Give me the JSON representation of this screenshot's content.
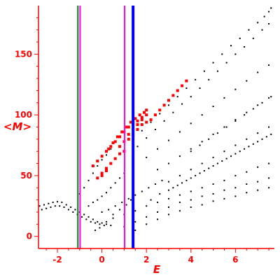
{
  "chart_data": {
    "type": "scatter",
    "title": "",
    "xlabel": "E",
    "ylabel": "<M>",
    "xlim": [
      -2.85,
      7.75
    ],
    "ylim": [
      -10,
      190
    ],
    "x_ticks": [
      -2,
      0,
      2,
      4,
      6
    ],
    "y_ticks": [
      0,
      50,
      100,
      150
    ],
    "axis_color": "#ff0000",
    "vertical_lines": [
      {
        "x": -1.08,
        "color": "#008000"
      },
      {
        "x": -0.98,
        "color": "#ff00ff"
      },
      {
        "x": 1.02,
        "color": "#ff00ff"
      },
      {
        "x": 1.4,
        "color": "#0000ff"
      }
    ],
    "series": [
      {
        "color": "#000000",
        "style": "small-dots",
        "points": [
          [
            -2.8,
            25
          ],
          [
            -2.6,
            26
          ],
          [
            -2.4,
            27
          ],
          [
            -2.2,
            28
          ],
          [
            -2.0,
            28.5
          ],
          [
            -1.8,
            28
          ],
          [
            -1.6,
            26
          ],
          [
            -1.4,
            24
          ],
          [
            -1.2,
            22
          ],
          [
            -1.0,
            20
          ],
          [
            -0.8,
            18
          ],
          [
            -0.6,
            16
          ],
          [
            -0.4,
            14
          ],
          [
            -0.2,
            12
          ],
          [
            0.0,
            11
          ],
          [
            0.2,
            10
          ],
          [
            0.4,
            9
          ],
          [
            -2.7,
            22
          ],
          [
            -2.5,
            23
          ],
          [
            -2.3,
            24
          ],
          [
            -2.1,
            25
          ],
          [
            -1.9,
            25
          ],
          [
            -1.7,
            24
          ],
          [
            -1.5,
            22
          ],
          [
            -1.3,
            20
          ],
          [
            -1.1,
            18
          ],
          [
            -0.9,
            16
          ],
          [
            -0.7,
            14
          ],
          [
            -0.5,
            12
          ],
          [
            -0.3,
            11
          ],
          [
            -0.1,
            10
          ],
          [
            0.1,
            9
          ],
          [
            -1.0,
            35
          ],
          [
            -0.8,
            40
          ],
          [
            -0.6,
            46
          ],
          [
            -0.4,
            52
          ],
          [
            -0.2,
            58
          ],
          [
            0.0,
            63
          ],
          [
            0.2,
            67
          ],
          [
            0.4,
            72
          ],
          [
            1.4,
            80
          ],
          [
            1.8,
            87
          ],
          [
            2.2,
            94
          ],
          [
            2.6,
            101
          ],
          [
            3.0,
            108
          ],
          [
            3.4,
            115
          ],
          [
            3.8,
            122
          ],
          [
            4.2,
            129
          ],
          [
            4.6,
            136
          ],
          [
            5.0,
            143
          ],
          [
            5.4,
            150
          ],
          [
            5.8,
            157
          ],
          [
            6.2,
            163
          ],
          [
            6.6,
            170
          ],
          [
            7.0,
            176
          ],
          [
            7.3,
            181
          ],
          [
            7.5,
            185
          ],
          [
            7.6,
            188
          ],
          [
            1.6,
            74
          ],
          [
            2.0,
            81
          ],
          [
            2.4,
            88
          ],
          [
            2.8,
            95
          ],
          [
            3.2,
            102
          ],
          [
            3.6,
            109
          ],
          [
            4.0,
            115
          ],
          [
            4.4,
            122
          ],
          [
            4.8,
            129
          ],
          [
            5.2,
            136
          ],
          [
            5.6,
            143
          ],
          [
            6.0,
            150
          ],
          [
            6.4,
            156
          ],
          [
            6.8,
            163
          ],
          [
            7.2,
            170
          ],
          [
            7.5,
            175
          ],
          [
            2.0,
            65
          ],
          [
            2.5,
            72
          ],
          [
            3.0,
            79
          ],
          [
            3.5,
            86
          ],
          [
            4.0,
            93
          ],
          [
            4.5,
            100
          ],
          [
            5.0,
            107
          ],
          [
            5.5,
            114
          ],
          [
            6.0,
            121
          ],
          [
            6.5,
            128
          ],
          [
            7.0,
            135
          ],
          [
            7.5,
            141
          ],
          [
            2.5,
            55
          ],
          [
            3.0,
            60
          ],
          [
            3.5,
            66
          ],
          [
            4.0,
            72
          ],
          [
            4.5,
            78
          ],
          [
            5.0,
            84
          ],
          [
            5.5,
            90
          ],
          [
            6.0,
            96
          ],
          [
            6.5,
            102
          ],
          [
            7.0,
            108
          ],
          [
            7.5,
            114
          ],
          [
            3.0,
            45
          ],
          [
            3.5,
            50
          ],
          [
            4.0,
            55
          ],
          [
            4.5,
            60
          ],
          [
            5.0,
            65
          ],
          [
            5.5,
            70
          ],
          [
            6.0,
            75
          ],
          [
            6.5,
            80
          ],
          [
            7.0,
            85
          ],
          [
            7.5,
            90
          ],
          [
            -0.6,
            25
          ],
          [
            -0.4,
            28
          ],
          [
            -0.2,
            30
          ],
          [
            0.0,
            33
          ],
          [
            0.2,
            36
          ],
          [
            0.4,
            40
          ],
          [
            0.6,
            44
          ],
          [
            0.8,
            48
          ],
          [
            1.0,
            52
          ],
          [
            0.0,
            20
          ],
          [
            0.3,
            22
          ],
          [
            0.6,
            25
          ],
          [
            0.9,
            28
          ],
          [
            1.2,
            31
          ],
          [
            1.5,
            34
          ],
          [
            1.8,
            37
          ],
          [
            2.1,
            40
          ],
          [
            2.4,
            43
          ],
          [
            2.7,
            46
          ],
          [
            0.5,
            15
          ],
          [
            1.0,
            18
          ],
          [
            1.5,
            21
          ],
          [
            2.0,
            25
          ],
          [
            2.5,
            28
          ],
          [
            3.0,
            31
          ],
          [
            3.5,
            34
          ],
          [
            4.0,
            37
          ],
          [
            4.5,
            40
          ],
          [
            5.0,
            43
          ],
          [
            5.5,
            46
          ],
          [
            6.0,
            50
          ],
          [
            6.5,
            53
          ],
          [
            7.0,
            57
          ],
          [
            7.5,
            60
          ],
          [
            1.0,
            8
          ],
          [
            1.5,
            12
          ],
          [
            2.0,
            16
          ],
          [
            2.5,
            20
          ],
          [
            3.0,
            24
          ],
          [
            3.5,
            28
          ],
          [
            4.0,
            30
          ],
          [
            4.5,
            33
          ],
          [
            5.0,
            35
          ],
          [
            5.5,
            38
          ],
          [
            6.0,
            40
          ],
          [
            6.5,
            43
          ],
          [
            7.0,
            45
          ],
          [
            7.5,
            48
          ],
          [
            1.5,
            5
          ],
          [
            2.0,
            10
          ],
          [
            2.5,
            14
          ],
          [
            3.0,
            18
          ],
          [
            3.5,
            21
          ],
          [
            4.0,
            24
          ],
          [
            4.5,
            26
          ],
          [
            5.0,
            29
          ],
          [
            5.5,
            31
          ],
          [
            6.0,
            33
          ],
          [
            6.5,
            36
          ],
          [
            7.0,
            38
          ],
          [
            7.5,
            40
          ],
          [
            2.2,
            30
          ],
          [
            2.6,
            35
          ],
          [
            3.0,
            38
          ],
          [
            3.4,
            42
          ],
          [
            3.8,
            46
          ],
          [
            4.2,
            50
          ],
          [
            4.6,
            54
          ],
          [
            5.0,
            58
          ],
          [
            5.4,
            62
          ],
          [
            5.8,
            66
          ],
          [
            6.2,
            70
          ],
          [
            6.6,
            74
          ],
          [
            7.0,
            78
          ],
          [
            7.4,
            82
          ],
          [
            3.2,
            40
          ],
          [
            3.6,
            44
          ],
          [
            4.0,
            48
          ],
          [
            4.4,
            52
          ],
          [
            4.8,
            56
          ],
          [
            5.2,
            60
          ],
          [
            5.6,
            64
          ],
          [
            6.0,
            68
          ],
          [
            6.4,
            72
          ],
          [
            6.8,
            76
          ],
          [
            7.2,
            80
          ],
          [
            7.6,
            84
          ],
          [
            -0.3,
            5
          ],
          [
            -0.1,
            7
          ],
          [
            0.2,
            12
          ],
          [
            0.5,
            18
          ],
          [
            0.8,
            22
          ],
          [
            1.1,
            26
          ],
          [
            1.3,
            30
          ],
          [
            4.0,
            70
          ],
          [
            4.4,
            75
          ],
          [
            4.8,
            80
          ],
          [
            5.2,
            85
          ],
          [
            5.6,
            90
          ],
          [
            6.0,
            95
          ],
          [
            6.4,
            100
          ],
          [
            6.8,
            105
          ],
          [
            7.2,
            110
          ],
          [
            7.6,
            115
          ]
        ]
      },
      {
        "color": "#ff0000",
        "style": "large-dots",
        "points": [
          [
            0.3,
            72
          ],
          [
            0.5,
            77
          ],
          [
            0.7,
            82
          ],
          [
            0.9,
            86
          ],
          [
            1.1,
            90
          ],
          [
            1.3,
            94
          ],
          [
            1.5,
            97
          ],
          [
            1.7,
            100
          ],
          [
            1.9,
            102
          ],
          [
            2.0,
            104
          ],
          [
            1.0,
            86
          ],
          [
            1.2,
            90
          ],
          [
            1.4,
            93
          ],
          [
            1.6,
            95
          ],
          [
            1.8,
            98
          ],
          [
            2.0,
            100
          ],
          [
            1.2,
            80
          ],
          [
            1.4,
            84
          ],
          [
            1.6,
            88
          ],
          [
            1.8,
            92
          ],
          [
            2.0,
            94
          ],
          [
            2.2,
            96
          ],
          [
            2.4,
            100
          ],
          [
            2.6,
            104
          ],
          [
            2.8,
            108
          ],
          [
            3.0,
            112
          ],
          [
            3.2,
            116
          ],
          [
            3.4,
            120
          ],
          [
            3.6,
            124
          ],
          [
            3.8,
            128
          ],
          [
            -0.4,
            58
          ],
          [
            -0.2,
            62
          ],
          [
            0.0,
            66
          ],
          [
            0.2,
            70
          ],
          [
            0.4,
            74
          ],
          [
            0.6,
            78
          ],
          [
            0.8,
            82
          ],
          [
            0.0,
            52
          ],
          [
            0.2,
            56
          ],
          [
            0.4,
            60
          ],
          [
            0.6,
            64
          ],
          [
            0.8,
            68
          ],
          [
            1.0,
            70
          ],
          [
            -0.2,
            48
          ],
          [
            0.0,
            50
          ],
          [
            0.2,
            54
          ],
          [
            0.8,
            74
          ],
          [
            1.0,
            78
          ],
          [
            1.2,
            84
          ],
          [
            1.4,
            88
          ],
          [
            1.6,
            92
          ],
          [
            1.8,
            96
          ]
        ]
      }
    ]
  }
}
